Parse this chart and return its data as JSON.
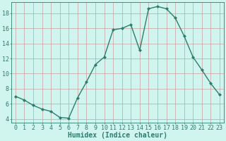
{
  "x": [
    0,
    1,
    2,
    3,
    4,
    5,
    6,
    7,
    8,
    9,
    10,
    11,
    12,
    13,
    14,
    15,
    16,
    17,
    18,
    19,
    20,
    21,
    22,
    23
  ],
  "y": [
    7.0,
    6.5,
    5.8,
    5.3,
    5.0,
    4.2,
    4.1,
    6.8,
    8.9,
    11.2,
    12.2,
    15.8,
    16.0,
    16.5,
    13.1,
    18.6,
    18.9,
    18.6,
    17.4,
    15.0,
    12.2,
    10.5,
    8.7,
    7.2
  ],
  "line_color": "#2e7d6e",
  "marker": "D",
  "markersize": 2.0,
  "linewidth": 1.0,
  "bg_color": "#cff5ee",
  "grid_color": "#c8a0a0",
  "xlabel": "Humidex (Indice chaleur)",
  "tick_fontsize": 6,
  "xlabel_fontsize": 7,
  "xlim": [
    -0.5,
    23.5
  ],
  "ylim": [
    3.5,
    19.5
  ],
  "yticks": [
    4,
    6,
    8,
    10,
    12,
    14,
    16,
    18
  ],
  "xticks": [
    0,
    1,
    2,
    3,
    4,
    5,
    6,
    7,
    8,
    9,
    10,
    11,
    12,
    13,
    14,
    15,
    16,
    17,
    18,
    19,
    20,
    21,
    22,
    23
  ]
}
